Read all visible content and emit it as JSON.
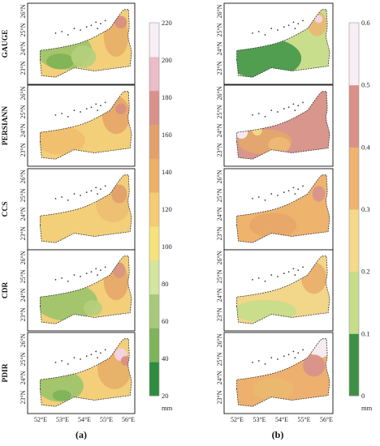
{
  "panel_a": {
    "label": "(a)",
    "rows": [
      "GAUGE",
      "PERSIANN",
      "CCS",
      "CDR",
      "PDIR"
    ],
    "colorbar": {
      "ticks": [
        "220",
        "200",
        "180",
        "160",
        "140",
        "120",
        "100",
        "80",
        "60",
        "40",
        "20"
      ],
      "unit": "mm",
      "colors": [
        "#2e8b3f",
        "#7fb45a",
        "#a8c97a",
        "#d4e59c",
        "#f5e37a",
        "#f5cc72",
        "#eeb066",
        "#e3a06a",
        "#d9918a",
        "#ecbcc8",
        "#f9eef6"
      ]
    }
  },
  "panel_b": {
    "label": "(b)",
    "colorbar": {
      "ticks": [
        "0.6",
        "0.5",
        "0.4",
        "0.3",
        "0.2",
        "0.1",
        "0"
      ],
      "unit": "mm",
      "colors": [
        "#3f8f45",
        "#c6dd8a",
        "#f5d98a",
        "#eeb46e",
        "#d9918a",
        "#f9eef6"
      ]
    }
  },
  "lat_ticks": [
    "26°N",
    "25°N",
    "24°N",
    "23°N"
  ],
  "lon_ticks": [
    "52°E",
    "53°E",
    "54°E",
    "55°E",
    "56°E"
  ]
}
